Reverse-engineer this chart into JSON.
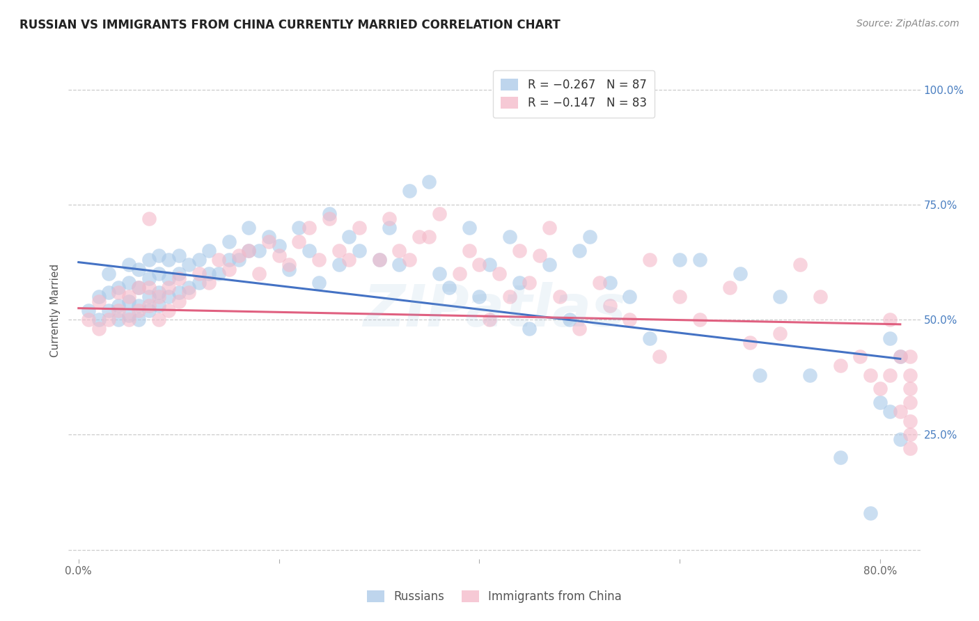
{
  "title": "RUSSIAN VS IMMIGRANTS FROM CHINA CURRENTLY MARRIED CORRELATION CHART",
  "source": "Source: ZipAtlas.com",
  "ylabel_label": "Currently Married",
  "xlim": [
    -0.01,
    0.84
  ],
  "ylim": [
    -0.02,
    1.06
  ],
  "xlabel_vals": [
    0.0,
    0.2,
    0.4,
    0.6,
    0.8
  ],
  "xlabel_ticks": [
    "0.0%",
    "",
    "",
    "",
    "80.0%"
  ],
  "ylabel_vals": [
    0.0,
    0.25,
    0.5,
    0.75,
    1.0
  ],
  "ylabel_right_ticks": [
    "",
    "25.0%",
    "50.0%",
    "75.0%",
    "100.0%"
  ],
  "blue_color": "#a8c8e8",
  "pink_color": "#f4b8c8",
  "blue_line_color": "#4472c4",
  "pink_line_color": "#e06080",
  "watermark": "ZIPatlas",
  "watermark_color": "#8ab4d8",
  "blue_scatter_x": [
    0.01,
    0.02,
    0.02,
    0.03,
    0.03,
    0.03,
    0.04,
    0.04,
    0.04,
    0.05,
    0.05,
    0.05,
    0.05,
    0.06,
    0.06,
    0.06,
    0.06,
    0.07,
    0.07,
    0.07,
    0.07,
    0.08,
    0.08,
    0.08,
    0.08,
    0.09,
    0.09,
    0.09,
    0.1,
    0.1,
    0.1,
    0.11,
    0.11,
    0.12,
    0.12,
    0.13,
    0.13,
    0.14,
    0.15,
    0.15,
    0.16,
    0.17,
    0.17,
    0.18,
    0.19,
    0.2,
    0.21,
    0.22,
    0.23,
    0.24,
    0.25,
    0.26,
    0.27,
    0.28,
    0.3,
    0.31,
    0.32,
    0.33,
    0.35,
    0.36,
    0.37,
    0.39,
    0.4,
    0.41,
    0.43,
    0.44,
    0.45,
    0.47,
    0.49,
    0.5,
    0.51,
    0.53,
    0.55,
    0.57,
    0.6,
    0.62,
    0.66,
    0.68,
    0.7,
    0.73,
    0.76,
    0.79,
    0.8,
    0.81,
    0.81,
    0.82,
    0.82
  ],
  "blue_scatter_y": [
    0.52,
    0.5,
    0.55,
    0.52,
    0.56,
    0.6,
    0.5,
    0.53,
    0.57,
    0.51,
    0.54,
    0.58,
    0.62,
    0.5,
    0.53,
    0.57,
    0.61,
    0.52,
    0.55,
    0.59,
    0.63,
    0.53,
    0.56,
    0.6,
    0.64,
    0.55,
    0.59,
    0.63,
    0.56,
    0.6,
    0.64,
    0.57,
    0.62,
    0.58,
    0.63,
    0.6,
    0.65,
    0.6,
    0.63,
    0.67,
    0.63,
    0.65,
    0.7,
    0.65,
    0.68,
    0.66,
    0.61,
    0.7,
    0.65,
    0.58,
    0.73,
    0.62,
    0.68,
    0.65,
    0.63,
    0.7,
    0.62,
    0.78,
    0.8,
    0.6,
    0.57,
    0.7,
    0.55,
    0.62,
    0.68,
    0.58,
    0.48,
    0.62,
    0.5,
    0.65,
    0.68,
    0.58,
    0.55,
    0.46,
    0.63,
    0.63,
    0.6,
    0.38,
    0.55,
    0.38,
    0.2,
    0.08,
    0.32,
    0.3,
    0.46,
    0.24,
    0.42
  ],
  "pink_scatter_x": [
    0.01,
    0.02,
    0.02,
    0.03,
    0.04,
    0.04,
    0.05,
    0.05,
    0.06,
    0.06,
    0.07,
    0.07,
    0.07,
    0.08,
    0.08,
    0.09,
    0.09,
    0.1,
    0.1,
    0.11,
    0.12,
    0.13,
    0.14,
    0.15,
    0.16,
    0.17,
    0.18,
    0.19,
    0.2,
    0.21,
    0.22,
    0.23,
    0.24,
    0.25,
    0.26,
    0.27,
    0.28,
    0.3,
    0.31,
    0.32,
    0.33,
    0.34,
    0.35,
    0.36,
    0.38,
    0.39,
    0.4,
    0.41,
    0.42,
    0.43,
    0.44,
    0.45,
    0.46,
    0.47,
    0.48,
    0.5,
    0.52,
    0.53,
    0.55,
    0.57,
    0.58,
    0.6,
    0.62,
    0.65,
    0.67,
    0.7,
    0.72,
    0.74,
    0.76,
    0.78,
    0.79,
    0.8,
    0.81,
    0.81,
    0.82,
    0.82,
    0.83,
    0.83,
    0.83,
    0.83,
    0.83,
    0.83,
    0.83
  ],
  "pink_scatter_y": [
    0.5,
    0.48,
    0.54,
    0.5,
    0.52,
    0.56,
    0.5,
    0.55,
    0.52,
    0.57,
    0.53,
    0.57,
    0.72,
    0.5,
    0.55,
    0.52,
    0.57,
    0.54,
    0.59,
    0.56,
    0.6,
    0.58,
    0.63,
    0.61,
    0.64,
    0.65,
    0.6,
    0.67,
    0.64,
    0.62,
    0.67,
    0.7,
    0.63,
    0.72,
    0.65,
    0.63,
    0.7,
    0.63,
    0.72,
    0.65,
    0.63,
    0.68,
    0.68,
    0.73,
    0.6,
    0.65,
    0.62,
    0.5,
    0.6,
    0.55,
    0.65,
    0.58,
    0.64,
    0.7,
    0.55,
    0.48,
    0.58,
    0.53,
    0.5,
    0.63,
    0.42,
    0.55,
    0.5,
    0.57,
    0.45,
    0.47,
    0.62,
    0.55,
    0.4,
    0.42,
    0.38,
    0.35,
    0.5,
    0.38,
    0.3,
    0.42,
    0.35,
    0.42,
    0.32,
    0.28,
    0.22,
    0.38,
    0.25
  ]
}
